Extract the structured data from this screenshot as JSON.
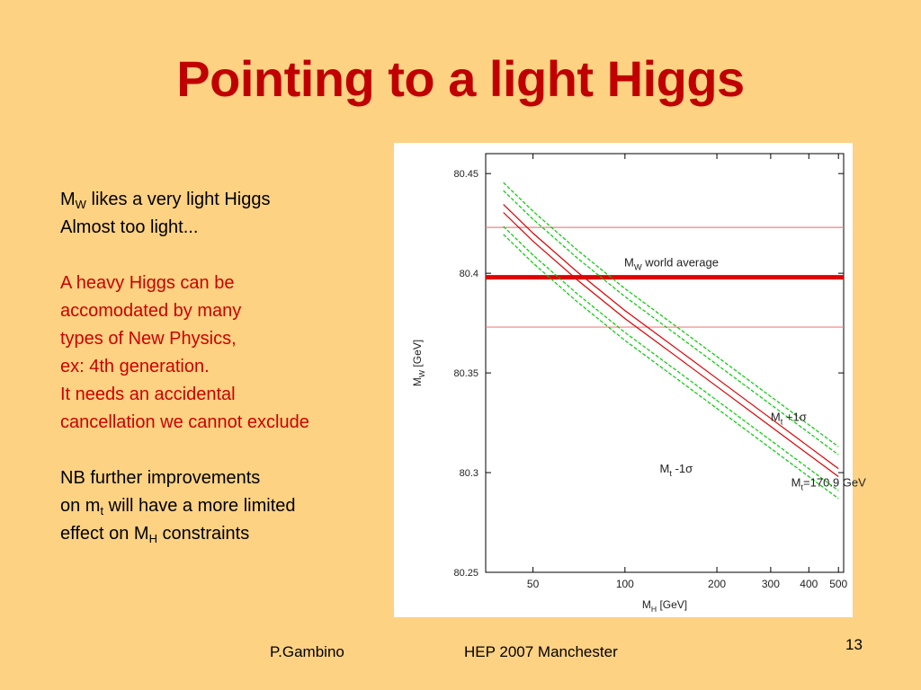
{
  "slide": {
    "title": "Pointing to a light Higgs",
    "number": "13"
  },
  "text": {
    "line1_m": "M",
    "line1_sub": "W",
    "line1_rest": " likes a very light Higgs",
    "line2": "Almost too light...",
    "red_lines": [
      "A heavy Higgs can be",
      "accomodated by many",
      "types of New Physics,",
      "ex: 4th generation.",
      "It needs an accidental",
      "cancellation we cannot exclude"
    ],
    "nb_line1": "NB further improvements",
    "nb_line2_a": "on m",
    "nb_line2_sub": "t",
    "nb_line2_b": " will have a more limited",
    "nb_line3_a": "effect on M",
    "nb_line3_sub": "H",
    "nb_line3_b": " constraints"
  },
  "footer": {
    "author": "P.Gambino",
    "event": "HEP 2007 Manchester"
  },
  "chart_data": {
    "type": "line",
    "xlabel": "M",
    "xlabel_sub": "H",
    "xlabel_unit": " [GeV]",
    "ylabel": "M",
    "ylabel_sub": "W",
    "ylabel_unit": " [GeV]",
    "x_scale": "log",
    "xlim": [
      35,
      520
    ],
    "ylim": [
      80.25,
      80.46
    ],
    "xticks": [
      50,
      100,
      200,
      300,
      400,
      500
    ],
    "yticks": [
      80.25,
      80.3,
      80.35,
      80.4,
      80.45
    ],
    "ytick_labels": [
      "80.25",
      "80.3",
      "80.35",
      "80.4",
      "80.45"
    ],
    "grid": false,
    "mw_average": 80.398,
    "mw_band": [
      80.373,
      80.423
    ],
    "band_label_m": "M",
    "band_label_sub": "W",
    "band_label_rest": " world average",
    "annotations": [
      {
        "text": "M",
        "sub": "t",
        "rest": " +1σ",
        "at_x": 300,
        "at_y": 80.326
      },
      {
        "text": "M",
        "sub": "t",
        "rest": " -1σ",
        "at_x": 130,
        "at_y": 80.3
      },
      {
        "text": "M",
        "sub": "t",
        "rest": "=170.9 GeV",
        "at_x": 350,
        "at_y": 80.293
      }
    ],
    "series": [
      {
        "name": "M_t +1σ upper",
        "color": "#00cc00",
        "dashed": true,
        "x": [
          40,
          50,
          70,
          100,
          150,
          200,
          300,
          400,
          500
        ],
        "y": [
          80.4455,
          80.4311,
          80.4115,
          80.3923,
          80.3724,
          80.3582,
          80.3382,
          80.324,
          80.313
        ]
      },
      {
        "name": "M_t +1σ lower",
        "color": "#00cc00",
        "dashed": true,
        "x": [
          40,
          50,
          70,
          100,
          150,
          200,
          300,
          400,
          500
        ],
        "y": [
          80.4415,
          80.4271,
          80.4075,
          80.3883,
          80.3684,
          80.3542,
          80.3342,
          80.32,
          80.309
        ]
      },
      {
        "name": "M_t=170.9 GeV upper",
        "color": "#dd0000",
        "dashed": false,
        "x": [
          40,
          50,
          70,
          100,
          150,
          200,
          300,
          400,
          500
        ],
        "y": [
          80.4345,
          80.4201,
          80.4005,
          80.3813,
          80.3614,
          80.3472,
          80.3272,
          80.313,
          80.302
        ]
      },
      {
        "name": "M_t=170.9 GeV lower",
        "color": "#dd0000",
        "dashed": false,
        "x": [
          40,
          50,
          70,
          100,
          150,
          200,
          300,
          400,
          500
        ],
        "y": [
          80.4305,
          80.4161,
          80.3965,
          80.3773,
          80.3574,
          80.3432,
          80.3232,
          80.309,
          80.298
        ]
      },
      {
        "name": "M_t -1σ upper",
        "color": "#00cc00",
        "dashed": true,
        "x": [
          40,
          50,
          70,
          100,
          150,
          200,
          300,
          400,
          500
        ],
        "y": [
          80.4235,
          80.4091,
          80.3895,
          80.3703,
          80.3504,
          80.3362,
          80.3162,
          80.302,
          80.291
        ]
      },
      {
        "name": "M_t -1σ lower",
        "color": "#00cc00",
        "dashed": true,
        "x": [
          40,
          50,
          70,
          100,
          150,
          200,
          300,
          400,
          500
        ],
        "y": [
          80.4195,
          80.4051,
          80.3855,
          80.3663,
          80.3464,
          80.3322,
          80.3122,
          80.298,
          80.287
        ]
      }
    ],
    "colors": {
      "band_edge": "#f08080",
      "average_line": "#e00000",
      "axis": "#000000",
      "tick_text": "#222222"
    }
  }
}
